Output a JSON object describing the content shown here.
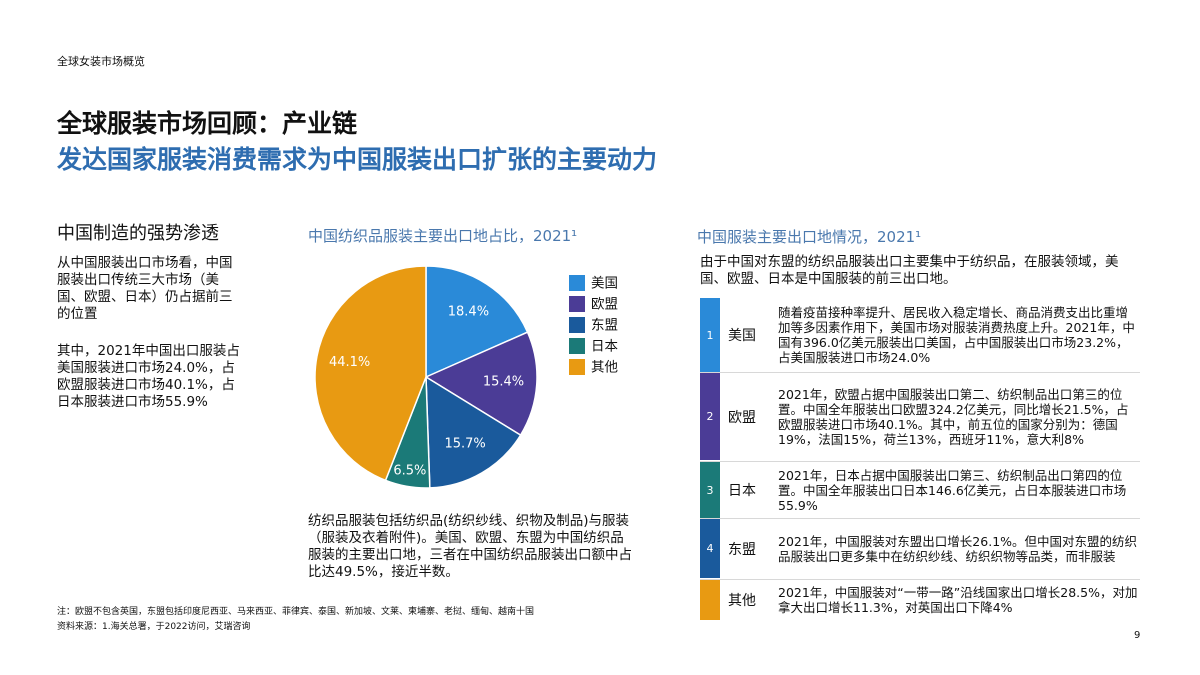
{
  "header": {
    "section": "全球女装市场概览",
    "title": "全球服装市场回顾：产业链",
    "subtitle": "发达国家服装消费需求为中国服装出口扩张的主要动力"
  },
  "left": {
    "heading": "中国制造的强势渗透",
    "paragraphs": [
      "从中国服装出口市场看，中国服装出口传统三大市场（美国、欧盟、日本）仍占据前三的位置",
      "其中，2021年中国出口服装占美国服装进口市场24.0%，占欧盟服装进口市场40.1%，占日本服装进口市场55.9%"
    ]
  },
  "chart_data": {
    "type": "pie",
    "title": "中国纺织品服装主要出口地占比，2021¹",
    "categories": [
      "美国",
      "欧盟",
      "东盟",
      "日本",
      "其他"
    ],
    "values": [
      18.4,
      15.4,
      15.7,
      6.5,
      44.1
    ],
    "value_labels": [
      "18.4%",
      "15.4%",
      "15.7%",
      "6.5%",
      "44.1%"
    ],
    "colors": [
      "#2a8ad8",
      "#4b3c96",
      "#1a5a9c",
      "#1b7a78",
      "#e89a12"
    ],
    "legend": "right",
    "note": "纺织品服装包括纺织品(纺织纱线、织物及制品)与服装（服装及衣着附件)。美国、欧盟、东盟为中国纺织品服装的主要出口地，三者在中国纺织品服装出口额中占比达49.5%，接近半数。"
  },
  "right": {
    "title": "中国服装主要出口地情况，2021¹",
    "intro": "由于中国对东盟的纺织品服装出口主要集中于纺织品，在服装领域，美国、欧盟、日本是中国服装的前三出口地。",
    "rows": [
      {
        "number": "1",
        "name": "美国",
        "color": "#2a8ad8",
        "text": "随着疫苗接种率提升、居民收入稳定增长、商品消费支出比重增加等多因素作用下，美国市场对服装消费热度上升。2021年，中国有396.0亿美元服装出口美国，占中国服装出口市场23.2%，占美国服装进口市场24.0%"
      },
      {
        "number": "2",
        "name": "欧盟",
        "color": "#4b3c96",
        "text": "2021年，欧盟占据中国服装出口第二、纺织制品出口第三的位置。中国全年服装出口欧盟324.2亿美元，同比增长21.5%，占欧盟服装进口市场40.1%。其中，前五位的国家分别为：德国19%，法国15%，荷兰13%，西班牙11%，意大利8%"
      },
      {
        "number": "3",
        "name": "日本",
        "color": "#1b7a78",
        "text": "2021年，日本占据中国服装出口第三、纺织制品出口第四的位置。中国全年服装出口日本146.6亿美元，占日本服装进口市场55.9%"
      },
      {
        "number": "4",
        "name": "东盟",
        "color": "#1a5a9c",
        "text": "2021年，中国服装对东盟出口增长26.1%。但中国对东盟的纺织品服装出口更多集中在纺织纱线、纺织织物等品类，而非服装"
      },
      {
        "name": "其他",
        "color": "#e89a12",
        "text": "2021年，中国服装对“一带一路”沿线国家出口增长28.5%，对加拿大出口增长11.3%，对英国出口下降4%"
      }
    ]
  },
  "footer": {
    "note": "注：欧盟不包含英国，东盟包括印度尼西亚、马来西亚、菲律宾、泰国、新加坡、文莱、柬埔寨、老挝、缅甸、越南十国",
    "source": "资料来源：1.海关总署，于2022访问，艾瑞咨询",
    "page": "9"
  }
}
